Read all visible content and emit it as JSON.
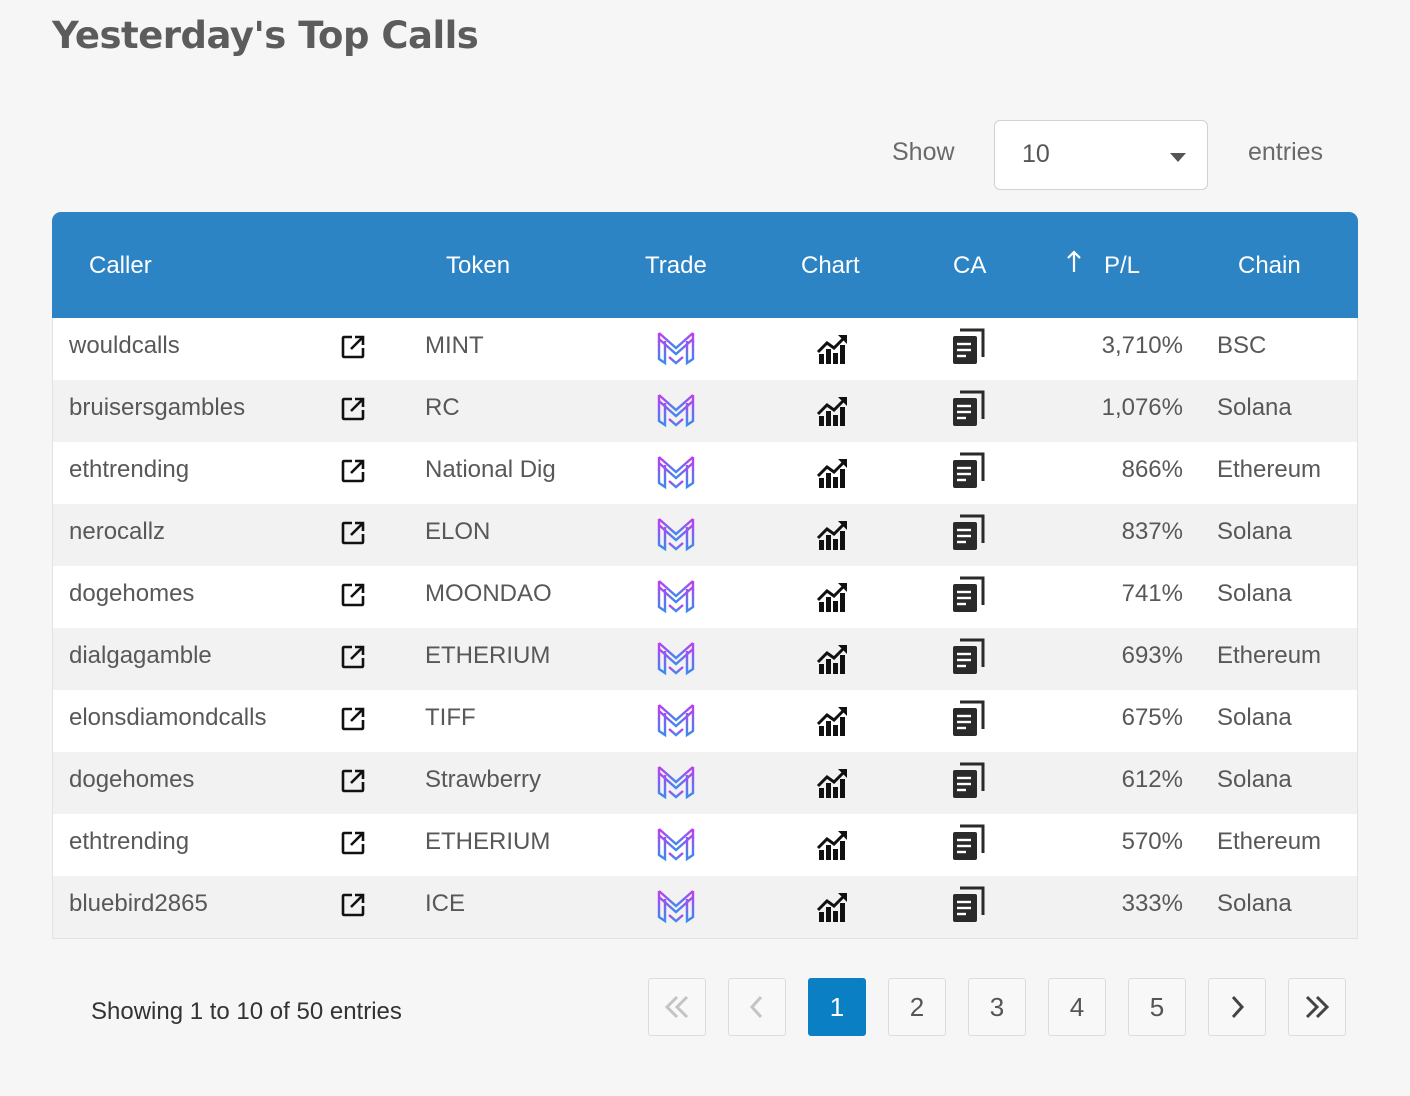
{
  "title": "Yesterday's Top Calls",
  "length": {
    "show_label": "Show",
    "selected": "10",
    "entries_label": "entries"
  },
  "columns": {
    "caller": "Caller",
    "token": "Token",
    "trade": "Trade",
    "chart": "Chart",
    "ca": "CA",
    "pl": "P/L",
    "chain": "Chain"
  },
  "sort": {
    "column": "P/L",
    "direction": "up-arrow"
  },
  "icons": {
    "link": "external-link-icon",
    "trade": "trade-logo-icon",
    "chart": "chart-icon",
    "ca": "copy-icon"
  },
  "colors": {
    "header": "#2d84c4",
    "active_page": "#0a7fc4",
    "trade_gradient_top": "#c33cf0",
    "trade_gradient_bottom": "#3a8bf0"
  },
  "rows": [
    {
      "caller": "wouldcalls",
      "token": "MINT",
      "pl": "3,710%",
      "chain": "BSC"
    },
    {
      "caller": "bruisersgambles",
      "token": "RC",
      "pl": "1,076%",
      "chain": "Solana"
    },
    {
      "caller": "ethtrending",
      "token": "National Dig",
      "pl": "866%",
      "chain": "Ethereum"
    },
    {
      "caller": "nerocallz",
      "token": "ELON",
      "pl": "837%",
      "chain": "Solana"
    },
    {
      "caller": "dogehomes",
      "token": "MOONDAO",
      "pl": "741%",
      "chain": "Solana"
    },
    {
      "caller": "dialgagamble",
      "token": "ETHERIUM",
      "pl": "693%",
      "chain": "Ethereum"
    },
    {
      "caller": "elonsdiamondcalls",
      "token": "TIFF",
      "pl": "675%",
      "chain": "Solana"
    },
    {
      "caller": "dogehomes",
      "token": "Strawberry",
      "pl": "612%",
      "chain": "Solana"
    },
    {
      "caller": "ethtrending",
      "token": "ETHERIUM",
      "pl": "570%",
      "chain": "Ethereum"
    },
    {
      "caller": "bluebird2865",
      "token": "ICE",
      "pl": "333%",
      "chain": "Solana"
    }
  ],
  "info": "Showing 1 to 10 of 50 entries",
  "pagination": {
    "first": "«",
    "prev": "‹",
    "next": "›",
    "last": "»",
    "pages": [
      "1",
      "2",
      "3",
      "4",
      "5"
    ],
    "current": "1"
  }
}
